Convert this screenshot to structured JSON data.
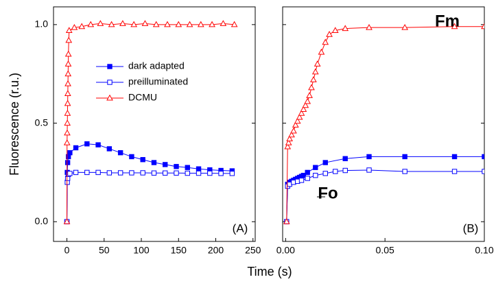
{
  "chart_data": [
    {
      "type": "line",
      "ylabel": "Fluorescence (r.u.)",
      "xlabel": "Time (s)",
      "xlim": [
        -18,
        253
      ],
      "ylim": [
        -0.1,
        1.09
      ],
      "xticks": [
        0,
        50,
        100,
        150,
        200,
        250
      ],
      "yticks": [
        {
          "value": 0,
          "label": "0.0"
        },
        {
          "value": 0.5,
          "label": "0.5"
        },
        {
          "value": 1,
          "label": "1.0"
        }
      ],
      "show_ytick_labels": true,
      "legend": "upper center",
      "annotations": [
        "(A)"
      ],
      "series": [
        {
          "name": "dark adapted",
          "color": "#0000ff",
          "marker": "square-filled",
          "x": [
            0,
            0.5,
            1,
            2,
            4,
            12,
            27,
            42,
            57,
            72,
            87,
            102,
            117,
            132,
            147,
            162,
            177,
            192,
            207,
            222
          ],
          "values": [
            0.0,
            0.25,
            0.3,
            0.33,
            0.35,
            0.375,
            0.395,
            0.39,
            0.37,
            0.35,
            0.33,
            0.315,
            0.3,
            0.29,
            0.28,
            0.275,
            0.268,
            0.263,
            0.26,
            0.258
          ]
        },
        {
          "name": "preilluminated",
          "color": "#0000ff",
          "marker": "square-open",
          "x": [
            0,
            0.5,
            1,
            2,
            4,
            12,
            27,
            42,
            57,
            72,
            87,
            102,
            117,
            132,
            147,
            162,
            177,
            192,
            207,
            222
          ],
          "values": [
            0.0,
            0.2,
            0.22,
            0.24,
            0.245,
            0.25,
            0.25,
            0.25,
            0.248,
            0.248,
            0.248,
            0.248,
            0.247,
            0.247,
            0.247,
            0.246,
            0.246,
            0.246,
            0.245,
            0.245
          ]
        },
        {
          "name": "DCMU",
          "color": "#ff0000",
          "marker": "triangle-open",
          "x": [
            0,
            0.2,
            0.4,
            0.6,
            0.8,
            1,
            1.2,
            1.4,
            1.6,
            1.8,
            2,
            2.5,
            3,
            10,
            20,
            32,
            45,
            60,
            75,
            90,
            105,
            120,
            135,
            150,
            165,
            180,
            195,
            210,
            225
          ],
          "values": [
            0.0,
            0.4,
            0.45,
            0.5,
            0.55,
            0.6,
            0.65,
            0.7,
            0.75,
            0.8,
            0.85,
            0.92,
            0.97,
            0.985,
            0.99,
            1.0,
            1.005,
            1.0,
            1.005,
            1.0,
            1.005,
            1.0,
            1.0,
            1.0,
            1.0,
            1.0,
            1.0,
            1.005,
            1.0
          ]
        }
      ]
    },
    {
      "type": "line",
      "xlim": [
        -0.0015,
        0.1
      ],
      "ylim": [
        -0.1,
        1.09
      ],
      "xticks": [
        {
          "value": 0,
          "label": "0.00"
        },
        {
          "value": 0.05,
          "label": "0.05"
        },
        {
          "value": 0.1,
          "label": "0.10"
        }
      ],
      "yticks": [
        0,
        0.5,
        1
      ],
      "show_ytick_labels": false,
      "legend": false,
      "annotations": [
        "(B)",
        "Fm",
        "Fo"
      ],
      "series": [
        {
          "name": "dark adapted",
          "color": "#0000ff",
          "marker": "square-filled",
          "x": [
            0.0005,
            0.001,
            0.002,
            0.003,
            0.004,
            0.005,
            0.006,
            0.007,
            0.008,
            0.009,
            0.011,
            0.015,
            0.02,
            0.03,
            0.042,
            0.06,
            0.085,
            0.1
          ],
          "values": [
            0.0,
            0.19,
            0.2,
            0.205,
            0.21,
            0.215,
            0.22,
            0.225,
            0.23,
            0.235,
            0.25,
            0.275,
            0.3,
            0.32,
            0.33,
            0.33,
            0.33,
            0.33
          ]
        },
        {
          "name": "preilluminated",
          "color": "#0000ff",
          "marker": "square-open",
          "x": [
            0.0005,
            0.001,
            0.002,
            0.004,
            0.006,
            0.008,
            0.011,
            0.015,
            0.02,
            0.025,
            0.03,
            0.042,
            0.06,
            0.085,
            0.1
          ],
          "values": [
            0.0,
            0.18,
            0.19,
            0.2,
            0.205,
            0.21,
            0.22,
            0.235,
            0.245,
            0.255,
            0.26,
            0.262,
            0.255,
            0.255,
            0.255
          ]
        },
        {
          "name": "DCMU",
          "color": "#ff0000",
          "marker": "triangle-open",
          "x": [
            0.0005,
            0.001,
            0.0015,
            0.002,
            0.003,
            0.004,
            0.005,
            0.006,
            0.007,
            0.008,
            0.009,
            0.01,
            0.011,
            0.012,
            0.013,
            0.014,
            0.015,
            0.016,
            0.018,
            0.02,
            0.022,
            0.025,
            0.03,
            0.042,
            0.06,
            0.085,
            0.1
          ],
          "values": [
            0.0,
            0.38,
            0.4,
            0.42,
            0.44,
            0.46,
            0.49,
            0.51,
            0.53,
            0.55,
            0.57,
            0.59,
            0.61,
            0.64,
            0.68,
            0.72,
            0.76,
            0.8,
            0.86,
            0.91,
            0.95,
            0.97,
            0.98,
            0.985,
            0.985,
            0.99,
            0.99
          ]
        }
      ]
    }
  ]
}
